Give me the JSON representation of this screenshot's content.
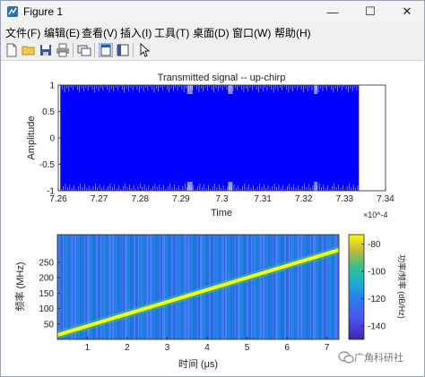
{
  "window": {
    "title": "Figure 1",
    "minimize": "—",
    "maximize": "☐",
    "close": "✕"
  },
  "menu": [
    {
      "label": "文件(F)"
    },
    {
      "label": "编辑(E)"
    },
    {
      "label": "查看(V)"
    },
    {
      "label": "插入(I)"
    },
    {
      "label": "工具(T)"
    },
    {
      "label": "桌面(D)"
    },
    {
      "label": "窗口(W)"
    },
    {
      "label": "帮助(H)"
    }
  ],
  "toolbar": [
    "new-figure-icon",
    "open-icon",
    "save-icon",
    "print-icon",
    "link-icon",
    "dock-icon",
    "panel-icon",
    "pointer-icon"
  ],
  "colors": {
    "signal": "#0000ff",
    "spectrogram_bg": "#2c7fea",
    "chirp_line": "#f9fb0e"
  },
  "watermark": "广角科研社",
  "chart_data": [
    {
      "type": "line",
      "title": "Transmitted signal -- up-chirp",
      "xlabel": "Time",
      "ylabel": "Amplitude",
      "x_exponent": "×10^-4",
      "x_ticks": [
        "7.26",
        "7.27",
        "7.28",
        "7.29",
        "7.3",
        "7.31",
        "7.32",
        "7.33",
        "7.34"
      ],
      "y_ticks": [
        "1",
        "0.5",
        "0",
        "-0.5",
        "-1"
      ],
      "xlim": [
        7.26,
        7.34
      ],
      "ylim": [
        -1,
        1
      ],
      "signal_start": 7.2605,
      "signal_end": 7.3335,
      "amplitude": 1,
      "grid": false
    },
    {
      "type": "heatmap",
      "xlabel": "时间 (μs)",
      "ylabel": "频率 (MHz)",
      "x_ticks": [
        "1",
        "2",
        "3",
        "4",
        "5",
        "6",
        "7"
      ],
      "y_ticks": [
        "250",
        "200",
        "150",
        "100",
        "50"
      ],
      "xlim": [
        0.25,
        7.3
      ],
      "ylim": [
        0,
        340
      ],
      "chirp": {
        "start": [
          0.25,
          14
        ],
        "end": [
          7.3,
          290
        ]
      },
      "colorbar": {
        "label": "功率/频率 (dB/Hz)",
        "ticks": [
          "-80",
          "-100",
          "-120",
          "-140"
        ],
        "range": [
          -150,
          -73
        ]
      }
    }
  ]
}
